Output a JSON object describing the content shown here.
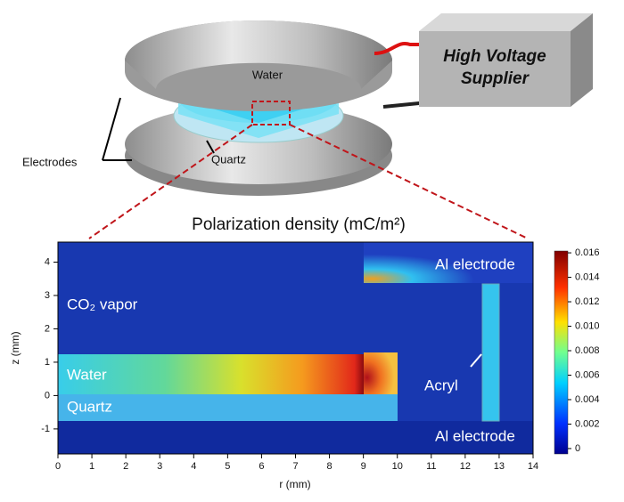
{
  "illustration": {
    "water": "Water",
    "electrodes": "Electrodes",
    "quartz": "Quartz",
    "supplier": [
      "High Voltage",
      "Supplier"
    ]
  },
  "plot": {
    "title": "Polarization density (mC/m²)",
    "xlabel": "r (mm)",
    "ylabel": "z (mm)",
    "xlim": [
      0,
      14
    ],
    "ylim": [
      -1.75,
      4.6
    ],
    "xticks": [
      0,
      1,
      2,
      3,
      4,
      5,
      6,
      7,
      8,
      9,
      10,
      11,
      12,
      13,
      14
    ],
    "yticks": [
      -1,
      0,
      1,
      2,
      3,
      4
    ],
    "regions": [
      "Al electrode",
      "CO₂ vapor",
      "Water",
      "Quartz",
      "Acryl",
      "Al electrode"
    ],
    "colorbar": {
      "clim": [
        -0.00044,
        0.01615
      ],
      "ticks": [
        0,
        0.002,
        0.004,
        0.006,
        {
          "value": 0.01,
          "label": "0.010"
        },
        0.008,
        0.012,
        0.014,
        0.016
      ]
    }
  }
}
